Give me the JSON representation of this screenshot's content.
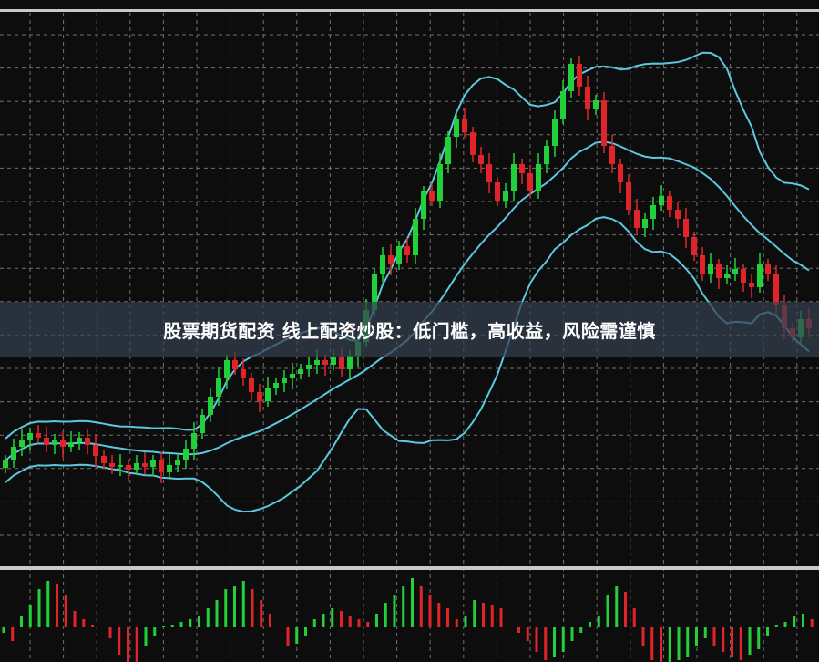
{
  "caption": "股票期货配资 线上配资炒股：低门槛，高收益，风险需谨慎",
  "colors": {
    "background": "#0d0d0d",
    "grid": "#8a8a8a",
    "up": "#22d13a",
    "down": "#e0242a",
    "bands": "#5cc8e0",
    "separator": "#c8c8c8"
  },
  "chart_data": [
    {
      "type": "candlestick",
      "indicator": "bollinger-bands",
      "title": "",
      "grid": true,
      "closes": [
        95,
        110,
        118,
        125,
        120,
        112,
        118,
        110,
        115,
        120,
        112,
        100,
        92,
        88,
        90,
        85,
        92,
        88,
        95,
        82,
        90,
        96,
        108,
        125,
        145,
        165,
        185,
        205,
        195,
        185,
        170,
        160,
        175,
        180,
        185,
        190,
        195,
        200,
        205,
        200,
        208,
        195,
        210,
        225,
        260,
        300,
        320,
        310,
        330,
        320,
        360,
        390,
        380,
        420,
        450,
        470,
        455,
        430,
        420,
        400,
        380,
        390,
        420,
        410,
        390,
        420,
        440,
        470,
        500,
        530,
        505,
        480,
        490,
        440,
        420,
        400,
        370,
        350,
        360,
        375,
        385,
        370,
        360,
        340,
        320,
        300,
        310,
        295,
        300,
        305,
        290,
        285,
        310,
        300,
        265,
        240,
        230,
        250,
        240
      ]
    },
    {
      "type": "bar",
      "indicator": "oscillator-histogram",
      "values": [
        -10,
        -25,
        20,
        40,
        70,
        85,
        80,
        60,
        30,
        15,
        5,
        0,
        -20,
        -50,
        -65,
        -75,
        -35,
        -15,
        3,
        5,
        10,
        15,
        20,
        35,
        50,
        70,
        75,
        85,
        70,
        50,
        25,
        0,
        -35,
        -30,
        -15,
        15,
        25,
        35,
        30,
        20,
        15,
        10,
        25,
        45,
        60,
        75,
        90,
        75,
        60,
        45,
        35,
        15,
        20,
        50,
        45,
        40,
        35,
        0,
        -10,
        -25,
        -45,
        -60,
        -55,
        -45,
        -25,
        -10,
        10,
        20,
        60,
        75,
        65,
        35,
        -35,
        -60,
        -70,
        -65,
        -60,
        -55,
        -35,
        -20,
        -35,
        -45,
        -55,
        -60,
        -50,
        -40,
        -15,
        5,
        10,
        20,
        25,
        15,
        -10,
        -25,
        -40,
        -50
      ]
    }
  ]
}
